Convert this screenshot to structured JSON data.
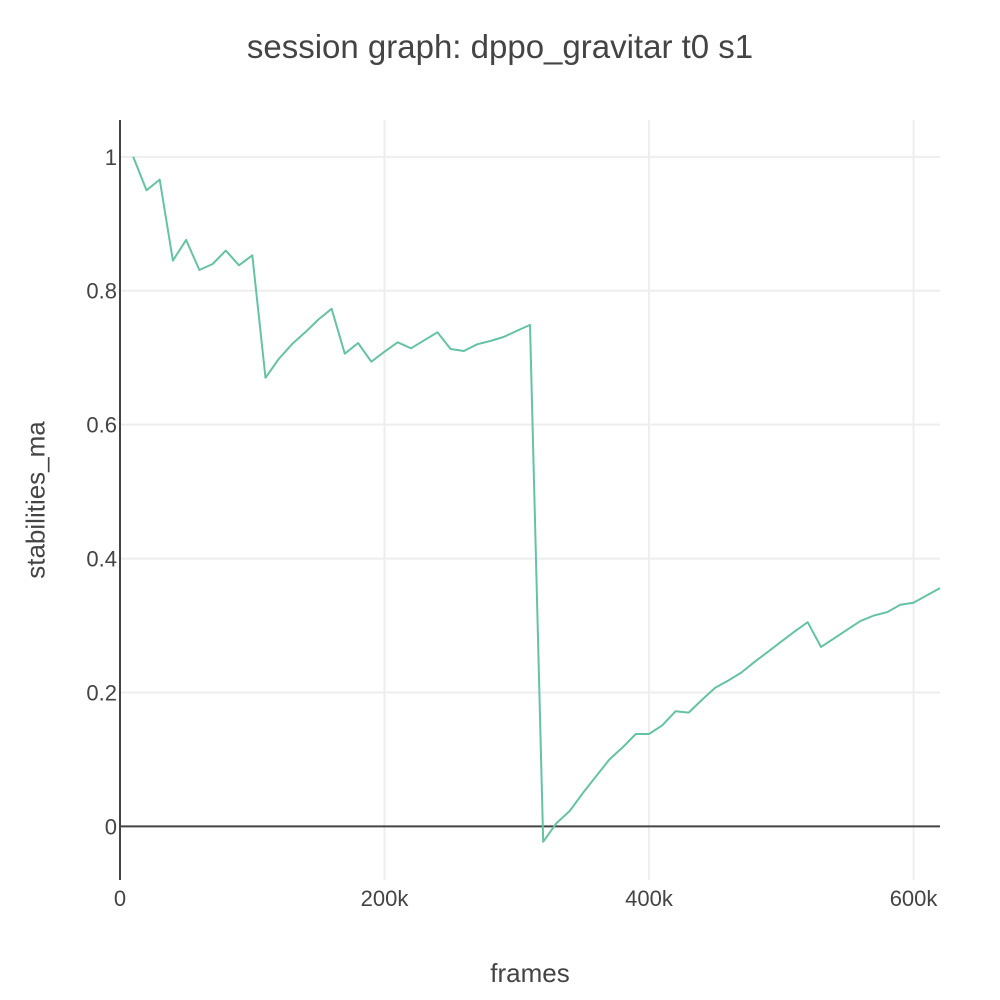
{
  "chart_data": {
    "type": "line",
    "title": "session graph: dppo_gravitar t0 s1",
    "xlabel": "frames",
    "ylabel": "stabilities_ma",
    "xlim": [
      0,
      620000
    ],
    "ylim": [
      -0.08,
      1.055
    ],
    "x_ticks": [
      0,
      200000,
      400000,
      600000
    ],
    "x_tick_labels": [
      "0",
      "200k",
      "400k",
      "600k"
    ],
    "y_ticks": [
      0,
      0.2,
      0.4,
      0.6,
      0.8,
      1
    ],
    "y_tick_labels": [
      "0",
      "0.2",
      "0.4",
      "0.6",
      "0.8",
      "1"
    ],
    "grid": true,
    "line_color": "#66c2a5",
    "series": [
      {
        "x": [
          10000,
          20000,
          30000,
          40000,
          50000,
          60000,
          70000,
          80000,
          90000,
          100000,
          110000,
          120000,
          130000,
          140000,
          150000,
          160000,
          170000,
          180000,
          190000,
          200000,
          210000,
          220000,
          230000,
          240000,
          250000,
          260000,
          270000,
          280000,
          290000,
          300000,
          310000,
          320000,
          330000,
          340000,
          350000,
          360000,
          370000,
          380000,
          390000,
          400000,
          410000,
          420000,
          430000,
          440000,
          450000,
          460000,
          470000,
          480000,
          490000,
          500000,
          510000,
          520000,
          530000,
          540000,
          550000,
          560000,
          570000,
          580000,
          590000,
          600000,
          610000,
          620000
        ],
        "values": [
          1.0,
          0.95,
          0.966,
          0.845,
          0.876,
          0.831,
          0.84,
          0.86,
          0.838,
          0.853,
          0.67,
          0.698,
          0.72,
          0.738,
          0.757,
          0.773,
          0.706,
          0.722,
          0.694,
          0.709,
          0.723,
          0.714,
          0.726,
          0.738,
          0.713,
          0.71,
          0.72,
          0.725,
          0.731,
          0.74,
          0.749,
          -0.023,
          0.005,
          0.023,
          0.05,
          0.075,
          0.1,
          0.118,
          0.138,
          0.138,
          0.151,
          0.172,
          0.17,
          0.189,
          0.207,
          0.218,
          0.23,
          0.246,
          0.261,
          0.276,
          0.291,
          0.305,
          0.268,
          0.281,
          0.294,
          0.307,
          0.315,
          0.32,
          0.331,
          0.334,
          0.345,
          0.356
        ]
      }
    ]
  }
}
